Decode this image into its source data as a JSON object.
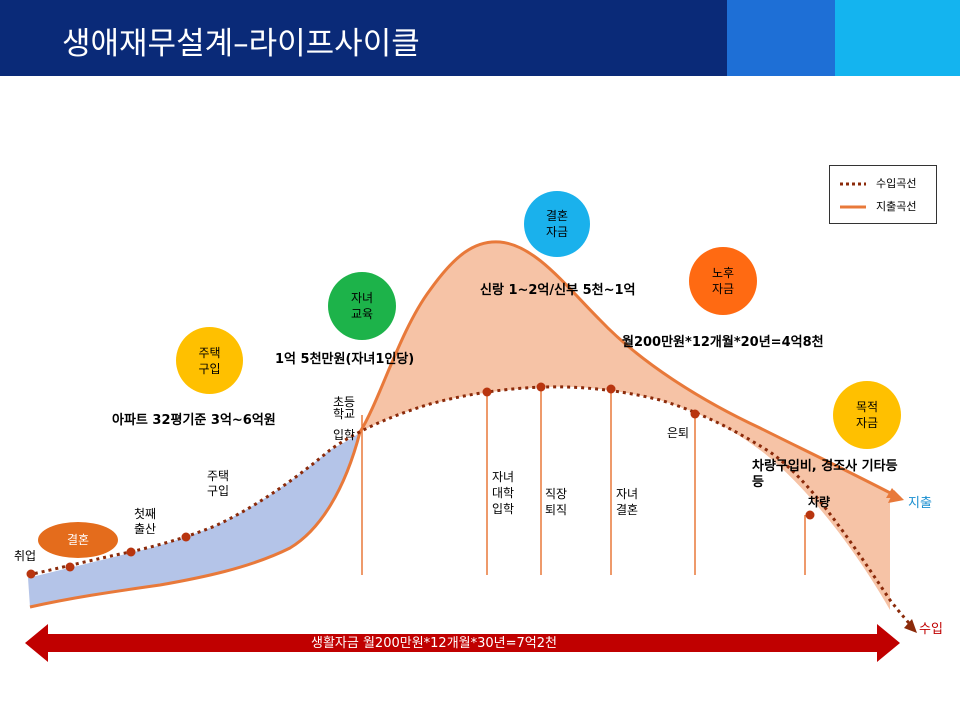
{
  "title": "생애재무설계–라이프사이클",
  "legend": {
    "income": "수입곡선",
    "expense": "지출곡선"
  },
  "colors": {
    "header": "#0a2a78",
    "income": "#8b2a0a",
    "expense": "#e8793a",
    "fill_area": "#f6c3a6",
    "blue_area": "#b4c4e8",
    "arrow": "#c00000"
  },
  "bubbles": {
    "house": "주택\n구입",
    "edu": "자녀\n교육",
    "wedding": "결혼\n자금",
    "retire": "노후\n자금",
    "goal": "목적\n자금",
    "marriage": "결혼"
  },
  "annotations": {
    "house_cost": "아파트 32평기준 3억~6억원",
    "edu_cost": "1억 5천만원(자녀1인당)",
    "wedding_cost": "신랑 1~2억/신부 5천~1억",
    "retire_cost": "월200만원*12개월*20년=4억8천",
    "goal_cost": "차량구입비, 경조사 기타등\n등",
    "living_cost": "생활자금  월200만원*12개월*30년=7억2천"
  },
  "events": {
    "job": "취업",
    "first_child": "첫째\n출산",
    "house_buy": "주택\n구입",
    "elementary": "초등\n학교",
    "entrance": "입학",
    "college": "자녀\n대학\n입학",
    "job_retire": "직장\n퇴직",
    "child_marry": "자녀\n결혼",
    "retirement": "은퇴",
    "car": "차량"
  },
  "curve_labels": {
    "expense": "지출",
    "income": "수입"
  }
}
